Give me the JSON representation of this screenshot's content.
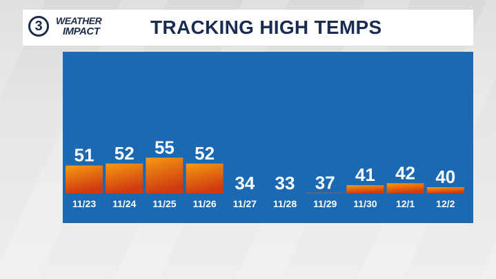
{
  "brand": {
    "channel": "3",
    "logo_line1": "WEATHER",
    "logo_line2": "IMPACT"
  },
  "header": {
    "title": "TRACKING HIGH TEMPS"
  },
  "colors": {
    "panel": "#1b69b3",
    "bar_top": "#f59a12",
    "bar_bottom": "#cf3a10",
    "title": "#1a2c52"
  },
  "chart_data": {
    "type": "bar",
    "title": "TRACKING HIGH TEMPS",
    "categories": [
      "11/23",
      "11/24",
      "11/25",
      "11/26",
      "11/27",
      "11/28",
      "11/29",
      "11/30",
      "12/1",
      "12/2"
    ],
    "values": [
      51,
      52,
      55,
      52,
      34,
      33,
      37,
      41,
      42,
      40
    ],
    "xlabel": "",
    "ylabel": "",
    "grid": false
  }
}
